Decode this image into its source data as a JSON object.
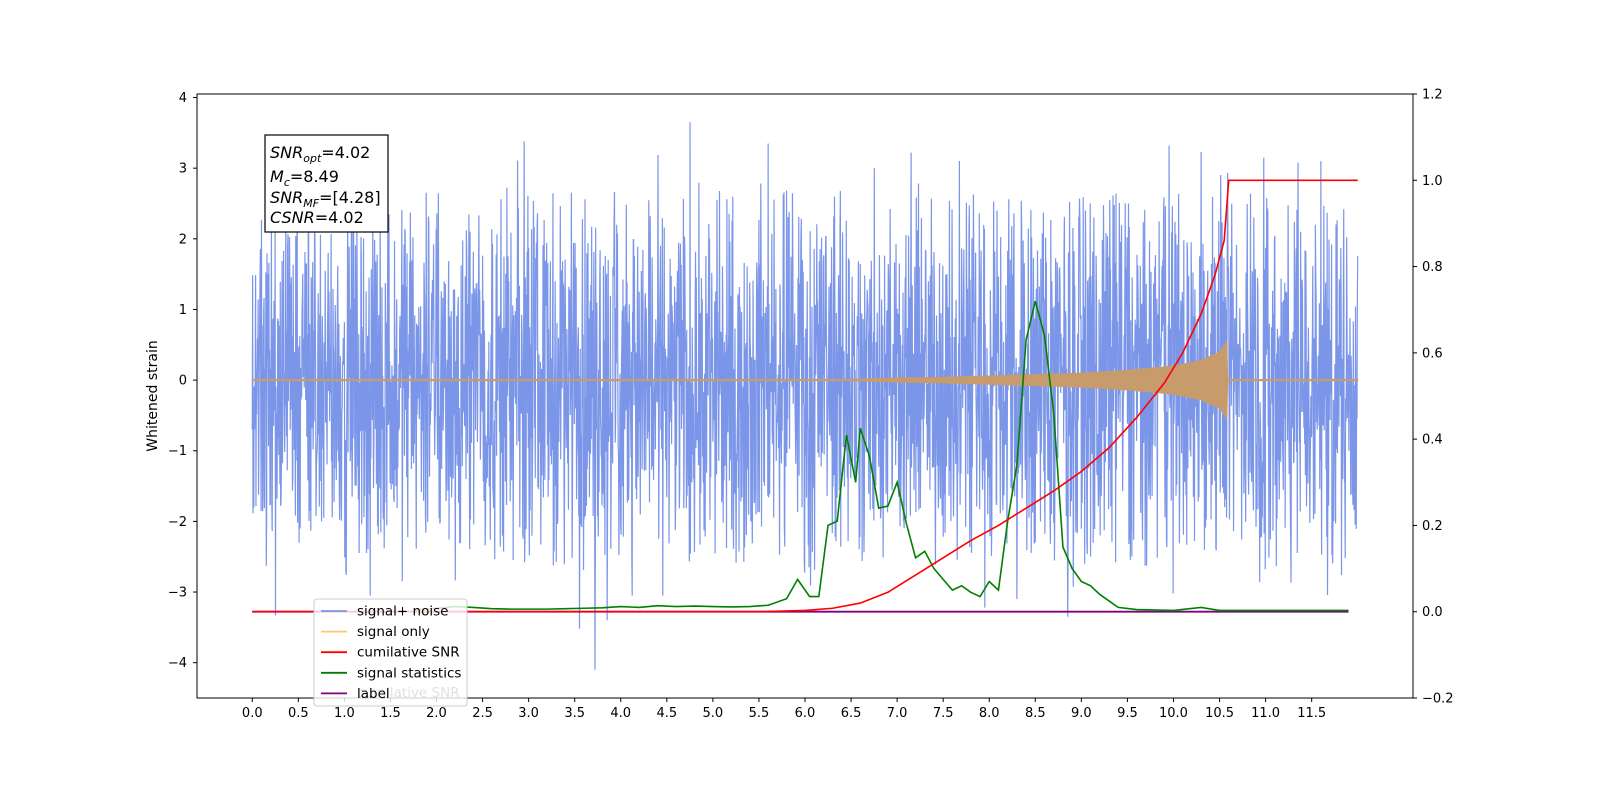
{
  "chart_data": {
    "type": "line",
    "ylabel": "Whitened strain",
    "x_ticks": [
      "0.0",
      "0.5",
      "1.0",
      "1.5",
      "2.0",
      "2.5",
      "3.0",
      "3.5",
      "4.0",
      "4.5",
      "5.0",
      "5.5",
      "6.0",
      "6.5",
      "7.0",
      "7.5",
      "8.0",
      "8.5",
      "9.0",
      "9.5",
      "10.0",
      "10.5",
      "11.0",
      "11.5"
    ],
    "x_tick_values": [
      0,
      0.5,
      1,
      1.5,
      2,
      2.5,
      3,
      3.5,
      4,
      4.5,
      5,
      5.5,
      6,
      6.5,
      7,
      7.5,
      8,
      8.5,
      9,
      9.5,
      10,
      10.5,
      11,
      11.5
    ],
    "xlim": [
      -0.6,
      12.6
    ],
    "y_left_ticks": [
      "4",
      "3",
      "2",
      "1",
      "0",
      "−1",
      "−2",
      "−3",
      "−4"
    ],
    "y_left_tick_values": [
      4,
      3,
      2,
      1,
      0,
      -1,
      -2,
      -3,
      -4
    ],
    "ylim_left": [
      -4.5,
      4.05
    ],
    "y_right_ticks": [
      "1.2",
      "1.0",
      "0.8",
      "0.6",
      "0.4",
      "0.2",
      "0.0",
      "−0.2"
    ],
    "y_right_tick_values": [
      1.2,
      1.0,
      0.8,
      0.6,
      0.4,
      0.2,
      0.0,
      -0.2
    ],
    "ylim_right": [
      -0.2,
      1.2
    ],
    "annotation": {
      "line1_main": "SNR",
      "line1_sub": "opt",
      "line1_rest": "=4.02",
      "line2_main": "M",
      "line2_sub": "c",
      "line2_rest": "=8.49",
      "line3_main": "SNR",
      "line3_sub": "MF",
      "line3_rest": "=[4.28]",
      "line4_main": "CSNR",
      "line4_rest": "=4.02"
    },
    "legend": {
      "placement": "lower-left",
      "entries": [
        {
          "label": "signal+ noise",
          "color": "#7b96e8"
        },
        {
          "label": "signal only",
          "color": "#ffc766"
        },
        {
          "label": "cumilative SNR",
          "color": "#ff0000"
        },
        {
          "label": "signal statistics",
          "color": "#008000"
        },
        {
          "label": "label",
          "color": "#800080"
        }
      ],
      "overlapped_text": "cumilative SNR"
    },
    "series": [
      {
        "name": "signal+ noise",
        "axis": "left",
        "color": "#7b96e8",
        "description_range": [
          0,
          12
        ],
        "amplitude_envelope": [
          -3.3,
          3.65
        ],
        "spikes": [
          [
            0.25,
            -3.33
          ],
          [
            0.1,
            2.27
          ],
          [
            1.28,
            -3.05
          ],
          [
            2.95,
            3.38
          ],
          [
            3.55,
            -3.52
          ],
          [
            3.72,
            -4.1
          ],
          [
            3.85,
            -3.4
          ],
          [
            4.75,
            3.65
          ],
          [
            5.6,
            3.35
          ],
          [
            6.75,
            3.0
          ],
          [
            7.15,
            3.22
          ],
          [
            7.95,
            -3.22
          ],
          [
            8.3,
            -3.1
          ],
          [
            8.85,
            -3.35
          ],
          [
            9.95,
            3.32
          ],
          [
            10.3,
            3.23
          ],
          [
            10.98,
            3.15
          ],
          [
            11.35,
            3.08
          ],
          [
            11.6,
            3.1
          ]
        ]
      },
      {
        "name": "signal only",
        "axis": "left",
        "color": "#c79b6b",
        "x": [
          0,
          6.5,
          7.0,
          7.5,
          8.0,
          8.5,
          9.0,
          9.5,
          10.0,
          10.3,
          10.5,
          10.58,
          10.59,
          12.0
        ],
        "envelope": [
          0.0,
          0.01,
          0.03,
          0.04,
          0.06,
          0.08,
          0.1,
          0.14,
          0.2,
          0.28,
          0.4,
          0.55,
          0.0,
          0.0
        ]
      },
      {
        "name": "cumilative SNR",
        "axis": "right",
        "color": "#ff0000",
        "x": [
          0,
          5.5,
          6.0,
          6.3,
          6.6,
          6.9,
          7.2,
          7.5,
          7.8,
          8.1,
          8.4,
          8.7,
          9.0,
          9.3,
          9.6,
          9.9,
          10.1,
          10.3,
          10.45,
          10.55,
          10.6,
          10.62,
          12.0
        ],
        "values": [
          0,
          0,
          0.003,
          0.008,
          0.02,
          0.045,
          0.085,
          0.125,
          0.165,
          0.2,
          0.24,
          0.28,
          0.325,
          0.38,
          0.45,
          0.53,
          0.6,
          0.69,
          0.78,
          0.86,
          1.0,
          1.0,
          1.0
        ]
      },
      {
        "name": "signal statistics",
        "axis": "right",
        "color": "#008000",
        "x": [
          1.75,
          2.0,
          2.2,
          2.4,
          2.6,
          2.8,
          3.0,
          3.2,
          3.4,
          3.6,
          3.8,
          4.0,
          4.2,
          4.4,
          4.6,
          4.8,
          5.0,
          5.2,
          5.4,
          5.6,
          5.8,
          5.92,
          6.05,
          6.15,
          6.25,
          6.35,
          6.45,
          6.55,
          6.6,
          6.7,
          6.8,
          6.9,
          7.0,
          7.1,
          7.2,
          7.3,
          7.4,
          7.5,
          7.6,
          7.7,
          7.8,
          7.9,
          8.0,
          8.1,
          8.2,
          8.3,
          8.4,
          8.5,
          8.6,
          8.7,
          8.8,
          8.9,
          9.0,
          9.1,
          9.2,
          9.4,
          9.6,
          10.0,
          10.3,
          10.5,
          11.9
        ],
        "values": [
          0.004,
          0.008,
          0.012,
          0.01,
          0.007,
          0.006,
          0.006,
          0.006,
          0.007,
          0.008,
          0.009,
          0.012,
          0.01,
          0.014,
          0.012,
          0.013,
          0.012,
          0.011,
          0.012,
          0.015,
          0.03,
          0.075,
          0.035,
          0.035,
          0.2,
          0.21,
          0.41,
          0.3,
          0.425,
          0.36,
          0.24,
          0.245,
          0.3,
          0.205,
          0.125,
          0.14,
          0.1,
          0.075,
          0.05,
          0.06,
          0.045,
          0.035,
          0.07,
          0.05,
          0.21,
          0.34,
          0.63,
          0.72,
          0.64,
          0.46,
          0.15,
          0.1,
          0.07,
          0.06,
          0.04,
          0.01,
          0.005,
          0.003,
          0.01,
          0.003,
          0.003
        ]
      },
      {
        "name": "label",
        "axis": "right",
        "color": "#800080",
        "x": [
          0,
          11.9
        ],
        "values": [
          0,
          0
        ]
      }
    ]
  }
}
